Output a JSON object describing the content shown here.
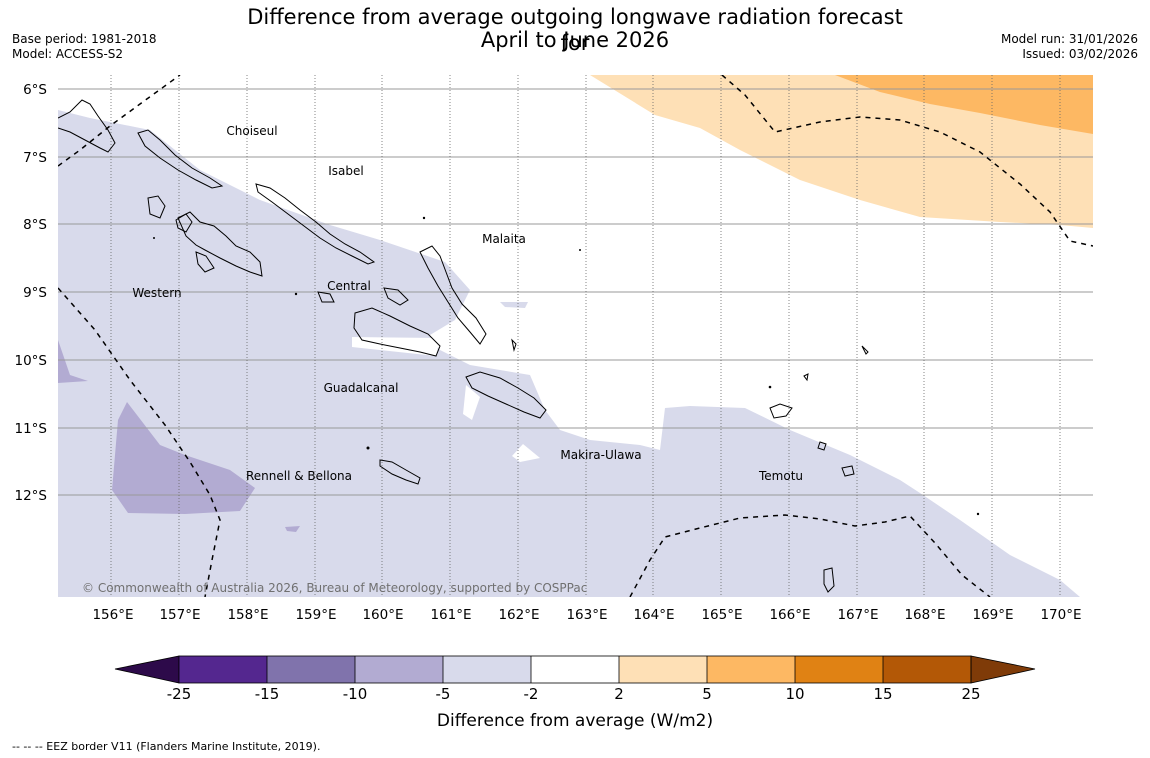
{
  "header": {
    "title_line1": "Difference from average outgoing longwave radiation forecast for",
    "title_line2": "April to June 2026",
    "base_period": "Base period: 1981-2018",
    "model": "Model: ACCESS-S2",
    "model_run": "Model run: 31/01/2026",
    "issued": "Issued: 03/02/2026"
  },
  "map": {
    "copyright": "© Commonwealth of Australia 2026, Bureau of Meteorology, supported by COSPPac",
    "lat_labels": [
      "6°S",
      "7°S",
      "8°S",
      "9°S",
      "10°S",
      "11°S",
      "12°S"
    ],
    "lon_labels": [
      "156°E",
      "157°E",
      "158°E",
      "159°E",
      "160°E",
      "161°E",
      "162°E",
      "163°E",
      "164°E",
      "165°E",
      "166°E",
      "167°E",
      "168°E",
      "169°E",
      "170°E"
    ],
    "regions": [
      "Choiseul",
      "Isabel",
      "Malaita",
      "Western",
      "Central",
      "Guadalcanal",
      "Makira-Ulawa",
      "Rennell & Bellona",
      "Temotu"
    ]
  },
  "colorbar": {
    "ticks": [
      "-25",
      "-15",
      "-10",
      "-5",
      "-2",
      "2",
      "5",
      "10",
      "15",
      "25"
    ],
    "label": "Difference from average (W/m2)",
    "colors": [
      "#2d0a4a",
      "#54278f",
      "#8073ac",
      "#b2abd2",
      "#d8daeb",
      "#ffffff",
      "#fee0b6",
      "#fdb863",
      "#e08214",
      "#b35806",
      "#7f3b08"
    ]
  },
  "footer": {
    "legend_text": "--  --  -- EEZ border V11 (Flanders Marine Institute, 2019)."
  }
}
